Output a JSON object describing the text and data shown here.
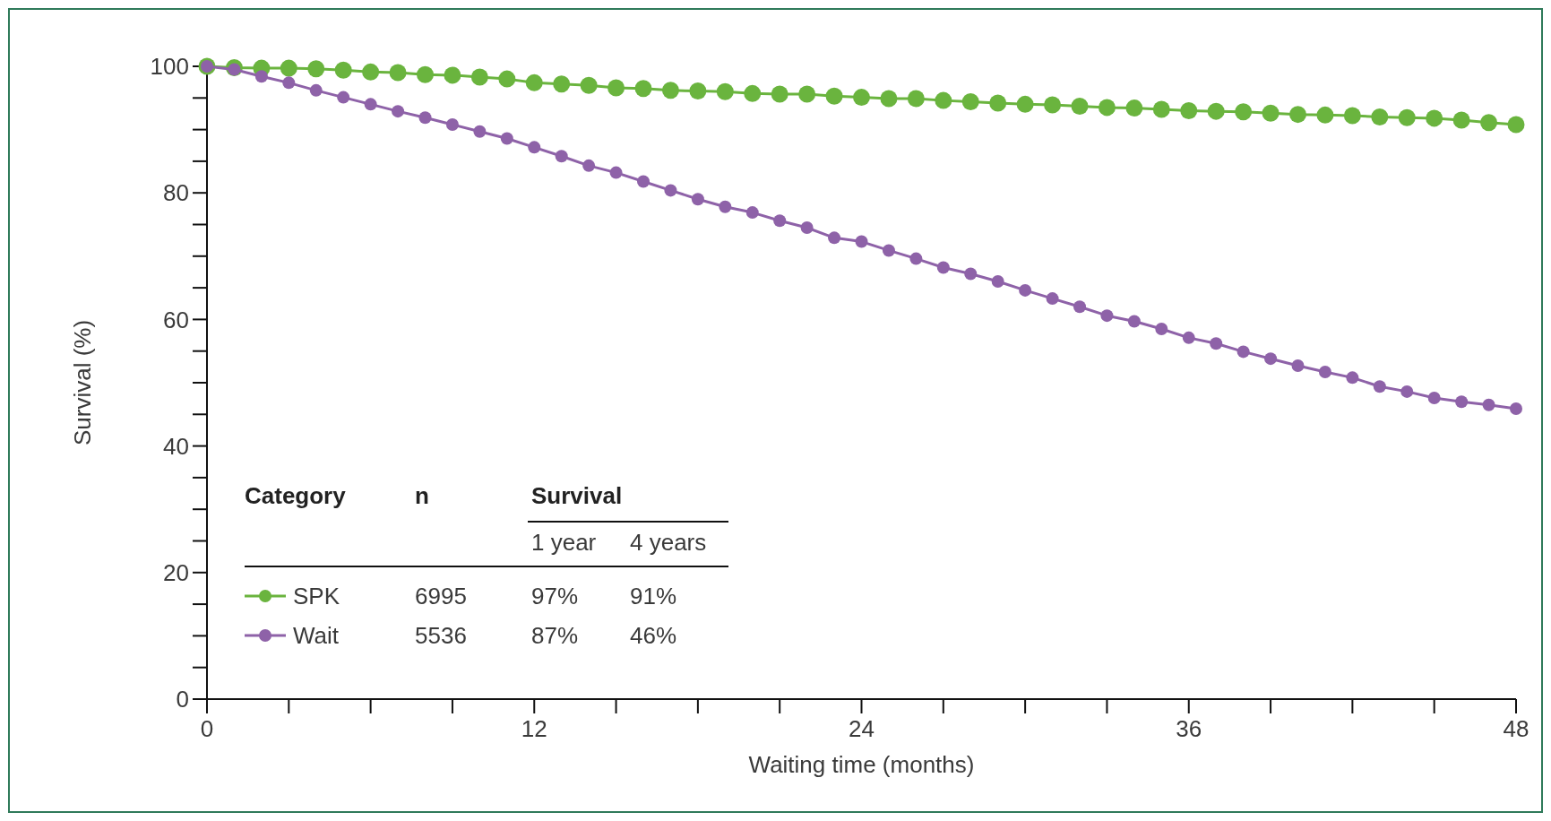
{
  "chart_data": {
    "type": "line",
    "xlabel": "Waiting time (months)",
    "ylabel": "Survival (%)",
    "legend": "bottom left",
    "legend_title": "Category",
    "marker": "circle",
    "line_style": "solid",
    "grid": false,
    "x": [
      0,
      1,
      2,
      3,
      4,
      5,
      6,
      7,
      8,
      9,
      10,
      11,
      12,
      13,
      14,
      15,
      16,
      17,
      18,
      19,
      20,
      21,
      22,
      23,
      24,
      25,
      26,
      27,
      28,
      29,
      30,
      31,
      32,
      33,
      34,
      35,
      36,
      37,
      38,
      39,
      40,
      41,
      42,
      43,
      44,
      45,
      46,
      47,
      48
    ],
    "xlim": [
      0,
      48
    ],
    "xticks": [
      0,
      {
        "value": 3,
        "label": null
      },
      {
        "value": 6,
        "label": null
      },
      {
        "value": 9,
        "label": null
      },
      12,
      {
        "value": 15,
        "label": null
      },
      {
        "value": 18,
        "label": null
      },
      {
        "value": 21,
        "label": null
      },
      24,
      {
        "value": 27,
        "label": null
      },
      {
        "value": 30,
        "label": null
      },
      {
        "value": 33,
        "label": null
      },
      36,
      {
        "value": 39,
        "label": null
      },
      {
        "value": 42,
        "label": null
      },
      {
        "value": 45,
        "label": null
      },
      48
    ],
    "ylim": [
      0,
      100
    ],
    "yticks": [
      0,
      {
        "value": 5,
        "label": null
      },
      {
        "value": 10,
        "label": null
      },
      {
        "value": 15,
        "label": null
      },
      20,
      {
        "value": 25,
        "label": null
      },
      {
        "value": 30,
        "label": null
      },
      {
        "value": 35,
        "label": null
      },
      40,
      {
        "value": 45,
        "label": null
      },
      {
        "value": 50,
        "label": null
      },
      {
        "value": 55,
        "label": null
      },
      60,
      {
        "value": 65,
        "label": null
      },
      {
        "value": 70,
        "label": null
      },
      {
        "value": 75,
        "label": null
      },
      80,
      {
        "value": 85,
        "label": null
      },
      {
        "value": 90,
        "label": null
      },
      {
        "value": 95,
        "label": null
      },
      100
    ],
    "series": [
      {
        "name": "SPK",
        "color": "#6ab43e",
        "values": [
          100,
          99.8,
          99.7,
          99.7,
          99.6,
          99.4,
          99.1,
          99.0,
          98.7,
          98.6,
          98.3,
          98.0,
          97.4,
          97.2,
          97.0,
          96.6,
          96.5,
          96.2,
          96.1,
          96.0,
          95.7,
          95.6,
          95.6,
          95.3,
          95.1,
          94.9,
          94.9,
          94.6,
          94.4,
          94.2,
          94.0,
          93.9,
          93.7,
          93.5,
          93.4,
          93.2,
          93.0,
          92.9,
          92.8,
          92.6,
          92.4,
          92.3,
          92.2,
          92.0,
          91.9,
          91.8,
          91.5,
          91.1,
          90.8
        ]
      },
      {
        "name": "Wait",
        "color": "#8e62a8",
        "values": [
          100,
          99.5,
          98.4,
          97.4,
          96.2,
          95.1,
          94.0,
          92.9,
          91.9,
          90.8,
          89.7,
          88.6,
          87.2,
          85.8,
          84.3,
          83.2,
          81.8,
          80.4,
          79.0,
          77.8,
          76.9,
          75.6,
          74.5,
          72.9,
          72.3,
          70.9,
          69.6,
          68.2,
          67.2,
          66.0,
          64.6,
          63.3,
          62.0,
          60.6,
          59.7,
          58.5,
          57.1,
          56.2,
          54.9,
          53.8,
          52.7,
          51.7,
          50.8,
          49.4,
          48.6,
          47.6,
          47.0,
          46.5,
          45.9
        ]
      }
    ],
    "annotations": [
      "n",
      "Survival",
      "1 year",
      "4 years",
      "6995",
      "97%",
      "91%",
      "5536",
      "87%",
      "46%"
    ]
  }
}
